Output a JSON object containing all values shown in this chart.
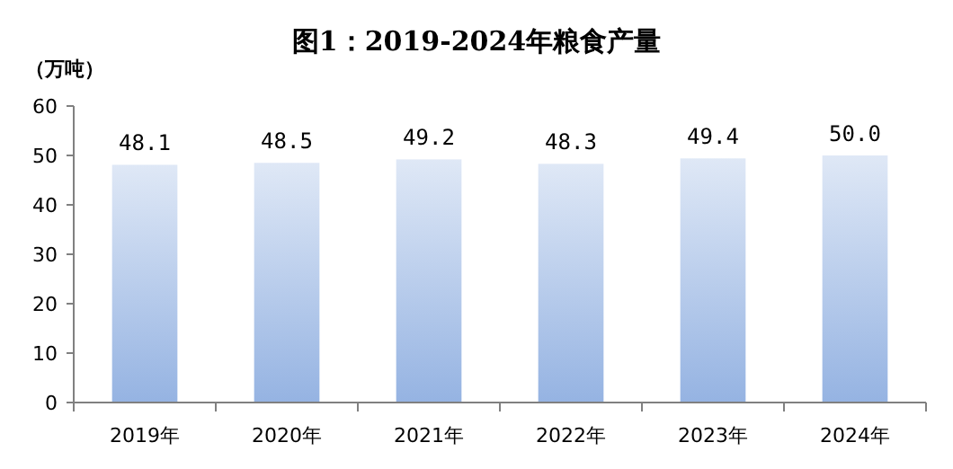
{
  "chart_data": {
    "type": "bar",
    "title": "图1：2019-2024年粮食产量",
    "ylabel": "（万吨）",
    "categories": [
      "2019年",
      "2020年",
      "2021年",
      "2022年",
      "2023年",
      "2024年"
    ],
    "values": [
      48.1,
      48.5,
      49.2,
      48.3,
      49.4,
      50.0
    ],
    "value_labels": [
      "48.1",
      "48.5",
      "49.2",
      "48.3",
      "49.4",
      "50.0"
    ],
    "color": "#95b3e2",
    "ylim": [
      0,
      60
    ],
    "yticks": [
      0,
      10,
      20,
      30,
      40,
      50,
      60
    ]
  }
}
